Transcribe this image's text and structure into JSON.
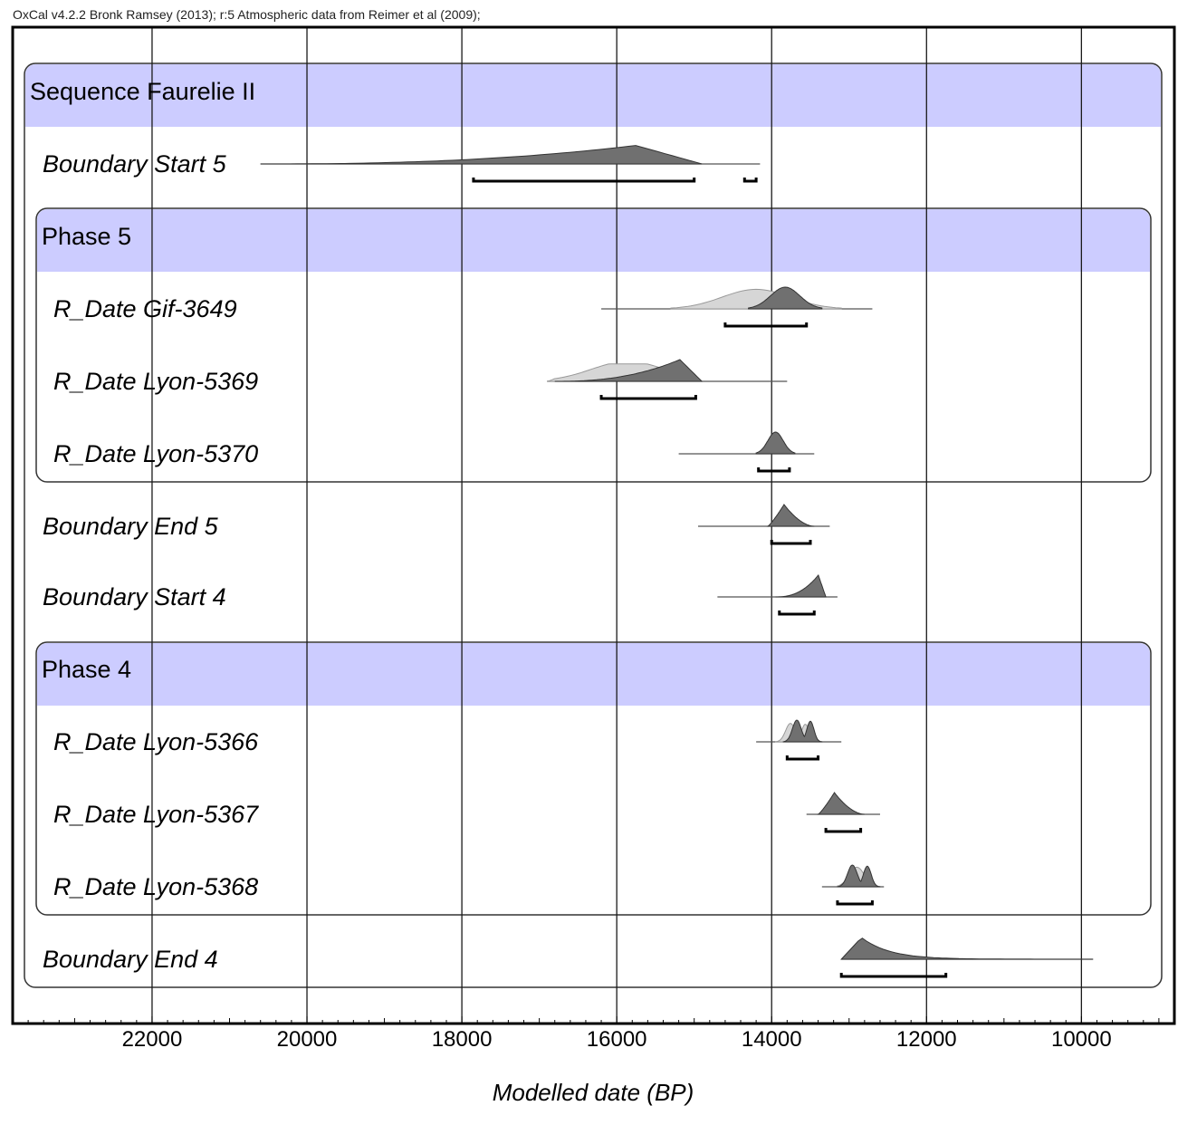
{
  "header": "OxCal v4.2.2 Bronk Ramsey (2013); r:5 Atmospheric data from Reimer et al (2009);",
  "chart_data": {
    "type": "density-ridge",
    "xlabel": "Modelled date (BP)",
    "xlim": [
      23800,
      8800
    ],
    "x_reversed": true,
    "ticks": [
      22000,
      20000,
      18000,
      16000,
      14000,
      12000,
      10000
    ],
    "tick_labels": [
      "22000",
      "20000",
      "18000",
      "16000",
      "14000",
      "12000",
      "10000"
    ],
    "minor_tick_step": 200,
    "grid": true,
    "colors": {
      "group_band": "#ccccff",
      "posterior": "#707070",
      "likelihood": "#d6d6d6",
      "frame": "#000000"
    },
    "groups": [
      {
        "label": "Sequence Faurelie II",
        "kind": "sequence",
        "first_row": 0,
        "last_row": 11
      },
      {
        "label": "Phase 5",
        "kind": "phase",
        "first_row": 1,
        "last_row": 3
      },
      {
        "label": "Phase 4",
        "kind": "phase",
        "first_row": 6,
        "last_row": 8
      }
    ],
    "rows": [
      {
        "label": "Boundary Start 5",
        "kind": "boundary",
        "range_line": [
          20600,
          14150
        ],
        "posterior": {
          "start": 20600,
          "end": 14900,
          "peak": 15500,
          "height": 0.85,
          "shape": "left_tail"
        },
        "hpd_ranges": [
          [
            17850,
            15000
          ],
          [
            14350,
            14200
          ]
        ]
      },
      {
        "label": "R_Date Gif-3649",
        "kind": "date",
        "range_line": [
          16200,
          12700
        ],
        "likelihood": {
          "start": 15300,
          "end": 13100,
          "peak": 13600,
          "height": 0.9,
          "shape": "bell"
        },
        "posterior": {
          "start": 14300,
          "end": 13350,
          "peak": 13850,
          "height": 1.0,
          "shape": "bell"
        },
        "hpd_ranges": [
          [
            14600,
            13550
          ]
        ]
      },
      {
        "label": "R_Date Lyon-5369",
        "kind": "date",
        "range_line": [
          16900,
          13800
        ],
        "likelihood": {
          "start": 16900,
          "end": 15000,
          "peak": 15800,
          "height": 0.8,
          "shape": "plateau"
        },
        "posterior": {
          "start": 16800,
          "end": 14900,
          "peak": 15300,
          "height": 1.0,
          "shape": "left_tail"
        },
        "hpd_ranges": [
          [
            16200,
            14980
          ]
        ]
      },
      {
        "label": "R_Date Lyon-5370",
        "kind": "date",
        "range_line": [
          15200,
          13450
        ],
        "posterior": {
          "start": 14200,
          "end": 13700,
          "peak": 13950,
          "height": 1.0,
          "shape": "bell"
        },
        "hpd_ranges": [
          [
            14170,
            13770
          ]
        ]
      },
      {
        "label": "Boundary End 5",
        "kind": "boundary",
        "range_line": [
          14950,
          13250
        ],
        "posterior": {
          "start": 14050,
          "end": 13450,
          "peak": 13800,
          "height": 1.0,
          "shape": "right_tail"
        },
        "hpd_ranges": [
          [
            14000,
            13500
          ]
        ]
      },
      {
        "label": "Boundary Start 4",
        "kind": "boundary",
        "range_line": [
          14700,
          13150
        ],
        "posterior": {
          "start": 13950,
          "end": 13300,
          "peak": 13650,
          "height": 1.0,
          "shape": "left_tail"
        },
        "hpd_ranges": [
          [
            13900,
            13450
          ]
        ]
      },
      {
        "label": "R_Date Lyon-5366",
        "kind": "date",
        "range_line": [
          14200,
          13100
        ],
        "likelihood": {
          "start": 13950,
          "end": 13400,
          "peak": 13750,
          "height": 0.85,
          "shape": "double"
        },
        "posterior": {
          "start": 13850,
          "end": 13350,
          "peak": 13500,
          "height": 1.0,
          "shape": "double"
        },
        "hpd_ranges": [
          [
            13800,
            13400
          ]
        ]
      },
      {
        "label": "R_Date Lyon-5367",
        "kind": "date",
        "range_line": [
          13550,
          12600
        ],
        "posterior": {
          "start": 13400,
          "end": 12800,
          "peak": 13100,
          "height": 1.0,
          "shape": "right_tail"
        },
        "hpd_ranges": [
          [
            13300,
            12850
          ]
        ]
      },
      {
        "label": "R_Date Lyon-5368",
        "kind": "date",
        "range_line": [
          13350,
          12550
        ],
        "likelihood": {
          "start": 13150,
          "end": 12650,
          "peak": 12900,
          "height": 0.9,
          "shape": "bell"
        },
        "posterior": {
          "start": 13150,
          "end": 12600,
          "peak": 13050,
          "height": 1.0,
          "shape": "double"
        },
        "hpd_ranges": [
          [
            13150,
            12700
          ]
        ]
      },
      {
        "label": "Boundary End 4",
        "kind": "boundary",
        "range_line": [
          13100,
          9850
        ],
        "posterior": {
          "start": 13100,
          "end": 9850,
          "peak": 12850,
          "height": 1.0,
          "shape": "long_right_tail"
        },
        "hpd_ranges": [
          [
            13100,
            11750
          ]
        ]
      }
    ]
  }
}
